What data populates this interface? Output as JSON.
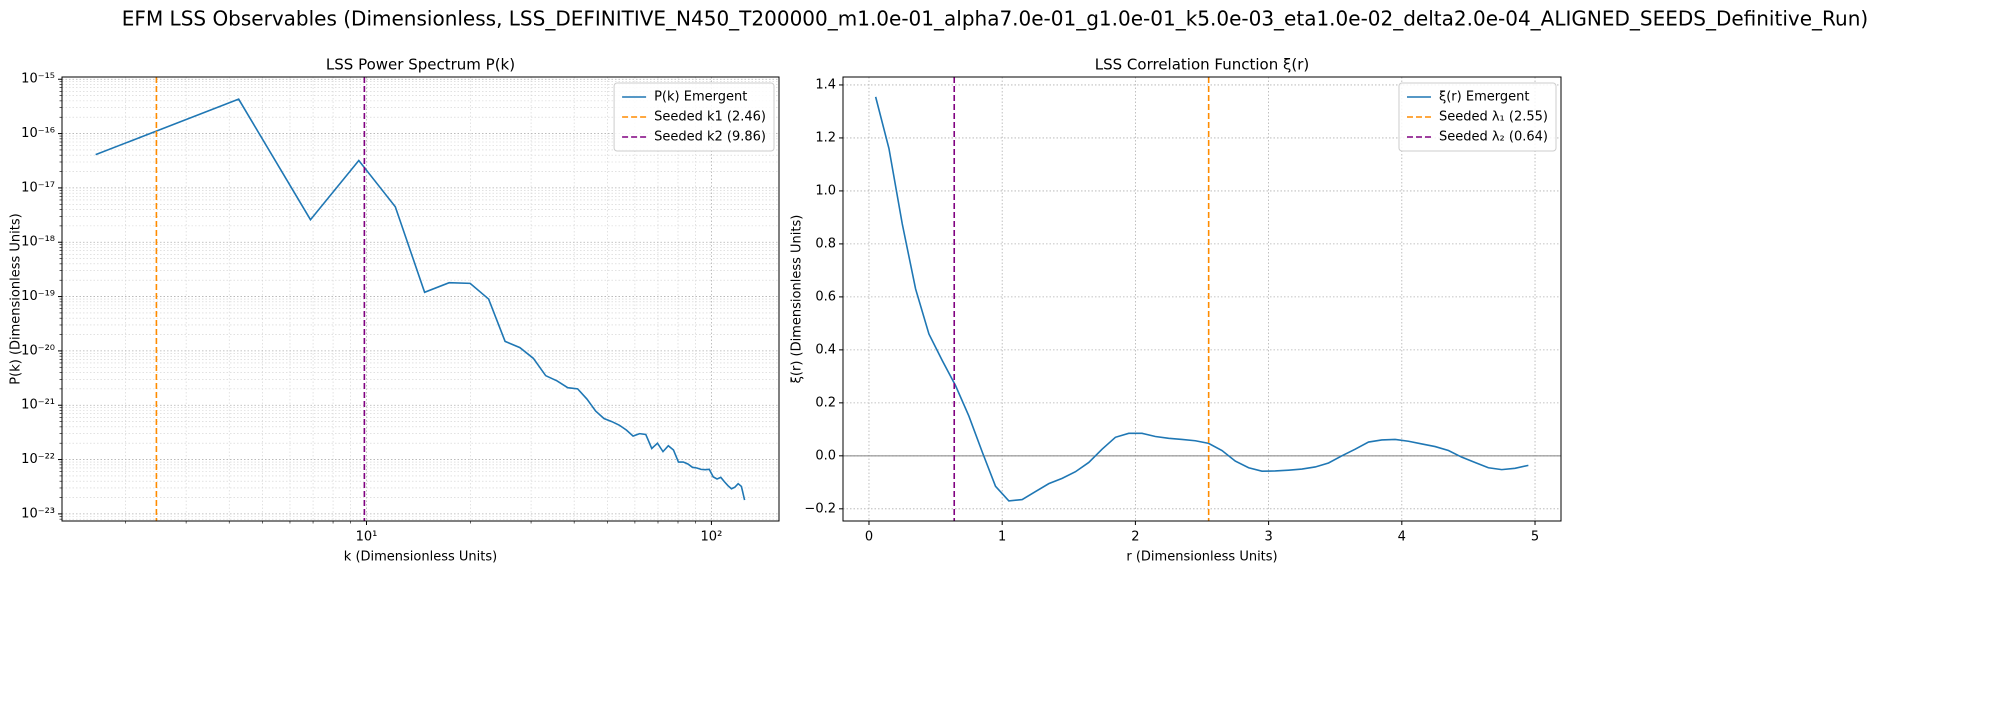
{
  "title": "EFM LSS Observables (Dimensionless, LSS_DEFINITIVE_N450_T200000_m1.0e-01_alpha7.0e-01_g1.0e-01_k5.0e-03_eta1.0e-02_delta2.0e-04_ALIGNED_SEEDS_Definitive_Run)",
  "chart_data": [
    {
      "type": "line",
      "title": "LSS Power Spectrum P(k)",
      "xlabel": "k (Dimensionless Units)",
      "ylabel": "P(k) (Dimensionless Units)",
      "xscale": "log",
      "yscale": "log",
      "grid": "both",
      "legend": "upper right",
      "xlim": [
        1.31,
        157
      ],
      "ylim": [
        7.4e-24,
        1.1e-15
      ],
      "xticks": [
        {
          "value": 10,
          "label": "10¹"
        },
        {
          "value": 100,
          "label": "10²"
        }
      ],
      "yticks": [
        {
          "value": 1e-23,
          "label": "10⁻²³"
        },
        {
          "value": 1e-22,
          "label": "10⁻²²"
        },
        {
          "value": 1e-21,
          "label": "10⁻²¹"
        },
        {
          "value": 1e-20,
          "label": "10⁻²⁰"
        },
        {
          "value": 1e-19,
          "label": "10⁻¹⁹"
        },
        {
          "value": 1e-18,
          "label": "10⁻¹⁸"
        },
        {
          "value": 1e-17,
          "label": "10⁻¹⁷"
        },
        {
          "value": 1e-16,
          "label": "10⁻¹⁶"
        },
        {
          "value": 1e-15,
          "label": "10⁻¹⁵"
        }
      ],
      "x": [
        1.64,
        4.26,
        6.88,
        9.5,
        12.12,
        14.74,
        17.36,
        19.98,
        22.6,
        25.22,
        27.84,
        30.46,
        33.08,
        35.7,
        38.32,
        40.94,
        43.56,
        46.18,
        48.8,
        51.42,
        54.04,
        56.66,
        59.28,
        61.9,
        64.52,
        67.14,
        69.76,
        72.38,
        75.0,
        77.62,
        80.24,
        82.86,
        85.48,
        88.1,
        90.72,
        93.34,
        95.96,
        98.58,
        101.2,
        103.82,
        106.44,
        109.06,
        111.68,
        114.3,
        116.92,
        119.54,
        122.16,
        124.78
      ],
      "series": [
        {
          "name": "P(k) Emergent",
          "color": "#1f77b4",
          "values": [
            4.1e-17,
            4.3e-16,
            2.6e-18,
            3.2e-17,
            4.5e-18,
            1.2e-19,
            1.8e-19,
            1.75e-19,
            9e-20,
            1.5e-20,
            1.15e-20,
            7.3e-21,
            3.5e-21,
            2.8e-21,
            2.1e-21,
            2e-21,
            1.3e-21,
            7.8e-22,
            5.7e-22,
            5e-22,
            4.3e-22,
            3.5e-22,
            2.7e-22,
            3e-22,
            2.9e-22,
            1.6e-22,
            2e-22,
            1.4e-22,
            1.8e-22,
            1.5e-22,
            9e-23,
            9e-23,
            8.3e-23,
            7.2e-23,
            7e-23,
            6.6e-23,
            6.5e-23,
            6.6e-23,
            4.8e-23,
            4.4e-23,
            4.7e-23,
            3.9e-23,
            3.3e-23,
            2.9e-23,
            3.1e-23,
            3.6e-23,
            3.2e-23,
            1.8e-23
          ]
        }
      ],
      "vlines": [
        {
          "name": "Seeded k1 (2.46)",
          "x": 2.46,
          "color": "#ff8c00"
        },
        {
          "name": "Seeded k2 (9.86)",
          "x": 9.86,
          "color": "#800080"
        }
      ]
    },
    {
      "type": "line",
      "title": "LSS Correlation Function ξ(r)",
      "xlabel": "r (Dimensionless Units)",
      "ylabel": "ξ(r) (Dimensionless Units)",
      "xscale": "linear",
      "yscale": "linear",
      "grid": "major",
      "legend": "upper right",
      "xlim": [
        -0.195,
        5.195
      ],
      "ylim": [
        -0.246,
        1.43
      ],
      "xticks": [
        0,
        1,
        2,
        3,
        4,
        5
      ],
      "yticks": [
        {
          "value": -0.2,
          "label": "−0.2"
        },
        {
          "value": 0,
          "label": "0.0"
        },
        0.2,
        0.4,
        0.6,
        0.8,
        {
          "value": 1,
          "label": "1.0"
        },
        1.2,
        1.4
      ],
      "x": [
        0.05,
        0.15,
        0.25,
        0.35,
        0.45,
        0.55,
        0.65,
        0.75,
        0.85,
        0.95,
        1.05,
        1.15,
        1.25,
        1.35,
        1.45,
        1.55,
        1.65,
        1.75,
        1.85,
        1.95,
        2.05,
        2.15,
        2.25,
        2.35,
        2.45,
        2.55,
        2.65,
        2.75,
        2.85,
        2.95,
        3.05,
        3.15,
        3.25,
        3.35,
        3.45,
        3.55,
        3.65,
        3.75,
        3.85,
        3.95,
        4.05,
        4.15,
        4.25,
        4.35,
        4.45,
        4.55,
        4.65,
        4.75,
        4.85,
        4.95
      ],
      "series": [
        {
          "name": "ξ(r) Emergent",
          "color": "#1f77b4",
          "values": [
            1.355,
            1.16,
            0.875,
            0.63,
            0.46,
            0.36,
            0.265,
            0.15,
            0.015,
            -0.115,
            -0.17,
            -0.165,
            -0.135,
            -0.105,
            -0.085,
            -0.06,
            -0.025,
            0.025,
            0.07,
            0.085,
            0.085,
            0.073,
            0.066,
            0.062,
            0.057,
            0.047,
            0.02,
            -0.02,
            -0.045,
            -0.058,
            -0.057,
            -0.054,
            -0.05,
            -0.042,
            -0.027,
            0.0,
            0.025,
            0.052,
            0.06,
            0.062,
            0.055,
            0.045,
            0.035,
            0.02,
            -0.005,
            -0.025,
            -0.045,
            -0.052,
            -0.047,
            -0.036
          ]
        }
      ],
      "vlines": [
        {
          "name": "Seeded λ₁ (2.55)",
          "x": 2.55,
          "color": "#ff8c00"
        },
        {
          "name": "Seeded λ₂ (0.64)",
          "x": 0.64,
          "color": "#800080"
        }
      ],
      "hlines": [
        {
          "y": 0,
          "color": "#808080"
        }
      ]
    }
  ]
}
